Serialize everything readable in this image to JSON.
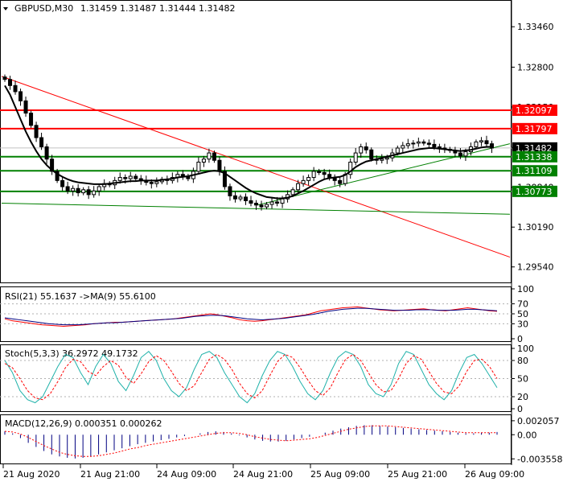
{
  "header": {
    "symbol_label": "GBPUSD,M30",
    "ohlc_label": "1.31459 1.31487 1.31444 1.31482"
  },
  "chart_data": [
    {
      "type": "candlestick",
      "yaxis": {
        "ticks": [
          "1.33460",
          "1.32800",
          "1.32150",
          "1.31490",
          "1.30840",
          "1.30190",
          "1.29540"
        ],
        "range": [
          1.293,
          1.3387
        ]
      },
      "xaxis": {
        "ticks": [
          "21 Aug 2020",
          "21 Aug 21:00",
          "24 Aug 09:00",
          "24 Aug 21:00",
          "25 Aug 09:00",
          "25 Aug 21:00",
          "26 Aug 09:00"
        ]
      },
      "price_labels": [
        {
          "value": "1.32097",
          "color": "#ff0000"
        },
        {
          "value": "1.31797",
          "color": "#ff0000"
        },
        {
          "value": "1.31482",
          "color": "#000000"
        },
        {
          "value": "1.31338",
          "color": "#008000"
        },
        {
          "value": "1.31109",
          "color": "#008000"
        },
        {
          "value": "1.30773",
          "color": "#008000"
        }
      ],
      "horizontal_levels": {
        "red": [
          1.32097,
          1.31797
        ],
        "green": [
          1.31338,
          1.31109,
          1.30773
        ]
      },
      "closes": [
        1.326,
        1.325,
        1.324,
        1.3225,
        1.3205,
        1.3185,
        1.3165,
        1.315,
        1.313,
        1.311,
        1.3095,
        1.3085,
        1.3078,
        1.3082,
        1.3075,
        1.308,
        1.3072,
        1.3078,
        1.3085,
        1.309,
        1.3088,
        1.3095,
        1.31,
        1.3098,
        1.3102,
        1.3098,
        1.3095,
        1.3092,
        1.309,
        1.3093,
        1.3097,
        1.3095,
        1.31,
        1.3105,
        1.3102,
        1.3098,
        1.311,
        1.3125,
        1.313,
        1.314,
        1.3128,
        1.311,
        1.3085,
        1.307,
        1.3065,
        1.3068,
        1.3062,
        1.3058,
        1.3055,
        1.3052,
        1.3056,
        1.306,
        1.3058,
        1.3065,
        1.3072,
        1.308,
        1.309,
        1.3095,
        1.31,
        1.311,
        1.3108,
        1.3105,
        1.31,
        1.3095,
        1.309,
        1.3105,
        1.3125,
        1.314,
        1.315,
        1.3145,
        1.313,
        1.3128,
        1.313,
        1.3132,
        1.314,
        1.3148,
        1.3152,
        1.3155,
        1.3156,
        1.3158,
        1.3156,
        1.3154,
        1.315,
        1.3148,
        1.3146,
        1.3144,
        1.314,
        1.3135,
        1.3142,
        1.315,
        1.3158,
        1.316,
        1.3155,
        1.3148
      ],
      "ma_values": [
        1.325,
        1.3235,
        1.3215,
        1.3195,
        1.3175,
        1.3158,
        1.3143,
        1.313,
        1.312,
        1.3112,
        1.3106,
        1.3101,
        1.3097,
        1.3094,
        1.3092,
        1.3091,
        1.309,
        1.3089,
        1.3089,
        1.3089,
        1.309,
        1.3091,
        1.3092,
        1.3093,
        1.3094,
        1.3094,
        1.3095,
        1.3095,
        1.3095,
        1.3095,
        1.3096,
        1.3097,
        1.3098,
        1.31,
        1.3101,
        1.3102,
        1.3104,
        1.3106,
        1.3108,
        1.311,
        1.3111,
        1.311,
        1.3107,
        1.3101,
        1.3095,
        1.3089,
        1.3083,
        1.3078,
        1.3074,
        1.3071,
        1.3068,
        1.3067,
        1.3066,
        1.3066,
        1.3067,
        1.307,
        1.3074,
        1.3078,
        1.3083,
        1.3088,
        1.3093,
        1.3097,
        1.3099,
        1.31,
        1.3101,
        1.3104,
        1.311,
        1.3117,
        1.3122,
        1.3126,
        1.3128,
        1.313,
        1.3132,
        1.3134,
        1.3136,
        1.3138,
        1.314,
        1.3142,
        1.3144,
        1.3146,
        1.3147,
        1.3148,
        1.3148,
        1.3147,
        1.3146,
        1.3145,
        1.3144,
        1.3143,
        1.3144,
        1.3145,
        1.3147,
        1.3149,
        1.315,
        1.315
      ]
    },
    {
      "type": "line",
      "label": "RSI(21) 55.1637  ->MA(9) 55.6100",
      "ticks": [
        "100",
        "70",
        "50",
        "30",
        "0"
      ],
      "ylim": [
        0,
        100
      ],
      "rsi": [
        40,
        36,
        34,
        32,
        30,
        28,
        27,
        26,
        25,
        26,
        27,
        28,
        30,
        31,
        32,
        33,
        33,
        34,
        35,
        36,
        37,
        38,
        39,
        40,
        42,
        44,
        46,
        48,
        50,
        48,
        45,
        42,
        38,
        36,
        35,
        36,
        38,
        40,
        42,
        44,
        46,
        48,
        52,
        56,
        58,
        60,
        62,
        63,
        64,
        62,
        60,
        58,
        57,
        56,
        57,
        58,
        59,
        60,
        58,
        57,
        56,
        58,
        60,
        62,
        60,
        58,
        56,
        55
      ],
      "ma": [
        42,
        40,
        38,
        36,
        34,
        32,
        30,
        29,
        28,
        28,
        28,
        29,
        30,
        31,
        32,
        32,
        33,
        34,
        35,
        36,
        37,
        38,
        39,
        40,
        41,
        43,
        45,
        46,
        47,
        47,
        46,
        44,
        42,
        40,
        39,
        38,
        39,
        40,
        41,
        43,
        45,
        47,
        49,
        52,
        55,
        57,
        59,
        60,
        61,
        61,
        60,
        59,
        58,
        57,
        57,
        57,
        58,
        58,
        58,
        57,
        57,
        57,
        58,
        59,
        59,
        58,
        57,
        56
      ]
    },
    {
      "type": "line",
      "label": "Stoch(5,3,3) 36.2972 49.1732",
      "ticks": [
        "100",
        "80",
        "50",
        "20",
        "0"
      ],
      "ylim": [
        0,
        100
      ],
      "main": [
        80,
        60,
        30,
        15,
        10,
        20,
        45,
        70,
        90,
        85,
        60,
        40,
        70,
        90,
        75,
        45,
        30,
        55,
        85,
        95,
        80,
        50,
        30,
        20,
        35,
        65,
        90,
        95,
        85,
        60,
        40,
        20,
        10,
        25,
        55,
        80,
        95,
        90,
        70,
        45,
        25,
        15,
        30,
        60,
        85,
        95,
        90,
        70,
        40,
        25,
        20,
        40,
        75,
        95,
        90,
        65,
        40,
        25,
        15,
        30,
        60,
        85,
        90,
        75,
        55,
        35
      ],
      "signal": [
        75,
        68,
        50,
        30,
        18,
        15,
        25,
        45,
        68,
        82,
        78,
        62,
        55,
        70,
        80,
        72,
        52,
        42,
        58,
        78,
        88,
        80,
        62,
        42,
        30,
        38,
        60,
        82,
        90,
        82,
        65,
        42,
        25,
        18,
        30,
        55,
        78,
        90,
        85,
        68,
        48,
        30,
        22,
        35,
        60,
        82,
        90,
        80,
        60,
        40,
        28,
        30,
        50,
        75,
        88,
        82,
        62,
        42,
        28,
        25,
        38,
        62,
        80,
        82,
        70,
        50
      ]
    },
    {
      "type": "histogram",
      "label": "MACD(12,26,9) 0.000351 0.000262",
      "ticks": [
        "0.002057",
        "0.00",
        "-0.003558"
      ],
      "ylim": [
        -0.004,
        0.0024
      ],
      "histogram": [
        0.0005,
        0.0002,
        -0.0005,
        -0.0012,
        -0.0018,
        -0.0024,
        -0.0029,
        -0.0032,
        -0.0034,
        -0.0035,
        -0.0034,
        -0.0032,
        -0.0029,
        -0.0026,
        -0.0023,
        -0.002,
        -0.0017,
        -0.0014,
        -0.0012,
        -0.001,
        -0.0008,
        -0.0006,
        -0.0004,
        -0.0002,
        0.0,
        0.0002,
        0.0004,
        0.0005,
        0.0004,
        0.0002,
        -0.0001,
        -0.0004,
        -0.0007,
        -0.0009,
        -0.001,
        -0.001,
        -0.0009,
        -0.0007,
        -0.0005,
        -0.0003,
        0.0,
        0.0003,
        0.0006,
        0.0009,
        0.0011,
        0.0013,
        0.0014,
        0.0014,
        0.0013,
        0.0012,
        0.0011,
        0.001,
        0.0009,
        0.0008,
        0.0007,
        0.0006,
        0.0005,
        0.0004,
        0.0003,
        0.0002,
        0.0002,
        0.0003,
        0.0003,
        0.0004
      ],
      "signal": [
        0.0005,
        0.0004,
        0.0001,
        -0.0004,
        -0.001,
        -0.0016,
        -0.0021,
        -0.0026,
        -0.0029,
        -0.0031,
        -0.0032,
        -0.0032,
        -0.0031,
        -0.0029,
        -0.0027,
        -0.0024,
        -0.0021,
        -0.0019,
        -0.0016,
        -0.0014,
        -0.0012,
        -0.001,
        -0.0008,
        -0.0006,
        -0.0004,
        -0.0002,
        0.0,
        0.0002,
        0.0003,
        0.0003,
        0.0002,
        0.0,
        -0.0003,
        -0.0005,
        -0.0007,
        -0.0008,
        -0.0009,
        -0.0008,
        -0.0007,
        -0.0006,
        -0.0004,
        -0.0001,
        0.0002,
        0.0005,
        0.0008,
        0.001,
        0.0012,
        0.0013,
        0.0013,
        0.0013,
        0.0012,
        0.0011,
        0.001,
        0.0009,
        0.0008,
        0.0007,
        0.0006,
        0.0005,
        0.0004,
        0.0003,
        0.0003,
        0.0003,
        0.0003,
        0.0003
      ]
    }
  ]
}
